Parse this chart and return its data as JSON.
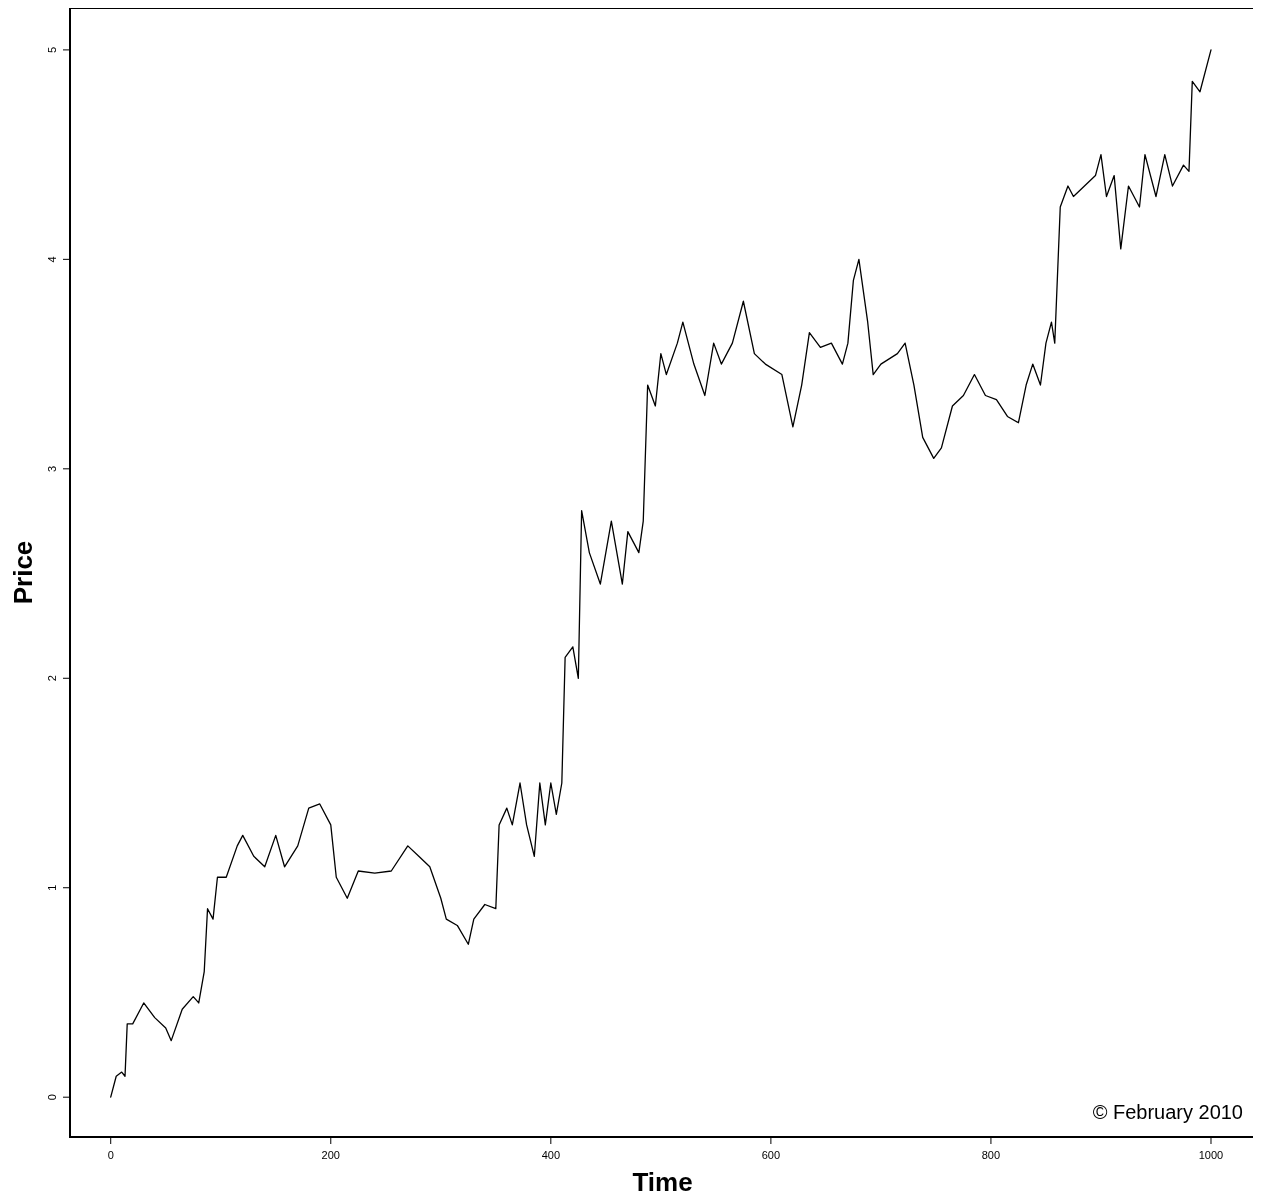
{
  "chart_data": {
    "type": "line",
    "xlabel": "Time",
    "ylabel": "Price",
    "xlim": [
      -37,
      1040
    ],
    "ylim": [
      -0.19,
      5.2
    ],
    "xticks": [
      0,
      200,
      400,
      600,
      800,
      1000
    ],
    "yticks": [
      0,
      1,
      2,
      3,
      4,
      5
    ],
    "annotations": [
      "© February 2010"
    ],
    "series": [
      {
        "color": "#000000",
        "x": [
          0,
          5,
          10,
          13,
          15,
          20,
          30,
          40,
          50,
          55,
          65,
          75,
          80,
          85,
          88,
          93,
          97,
          105,
          115,
          120,
          130,
          140,
          150,
          158,
          170,
          180,
          190,
          200,
          205,
          215,
          225,
          240,
          255,
          270,
          280,
          290,
          300,
          305,
          315,
          325,
          330,
          340,
          350,
          353,
          360,
          365,
          372,
          378,
          385,
          390,
          395,
          400,
          405,
          410,
          413,
          420,
          425,
          428,
          435,
          445,
          455,
          465,
          470,
          480,
          484,
          488,
          495,
          500,
          505,
          515,
          520,
          530,
          540,
          548,
          555,
          565,
          575,
          585,
          595,
          610,
          620,
          628,
          635,
          645,
          655,
          665,
          670,
          675,
          680,
          688,
          693,
          700,
          715,
          722,
          730,
          738,
          748,
          755,
          765,
          775,
          785,
          795,
          805,
          815,
          825,
          832,
          838,
          845,
          850,
          855,
          858,
          863,
          870,
          875,
          885,
          895,
          900,
          905,
          912,
          918,
          925,
          935,
          940,
          950,
          958,
          965,
          975,
          980,
          983,
          990,
          1000
        ],
        "values": [
          0,
          0.1,
          0.12,
          0.1,
          0.35,
          0.35,
          0.45,
          0.38,
          0.33,
          0.27,
          0.42,
          0.48,
          0.45,
          0.6,
          0.9,
          0.85,
          1.05,
          1.05,
          1.2,
          1.25,
          1.15,
          1.1,
          1.25,
          1.1,
          1.2,
          1.38,
          1.4,
          1.3,
          1.05,
          0.95,
          1.08,
          1.07,
          1.08,
          1.2,
          1.15,
          1.1,
          0.95,
          0.85,
          0.82,
          0.73,
          0.85,
          0.92,
          0.9,
          1.3,
          1.38,
          1.3,
          1.5,
          1.3,
          1.15,
          1.5,
          1.3,
          1.5,
          1.35,
          1.5,
          2.1,
          2.15,
          2.0,
          2.8,
          2.6,
          2.45,
          2.75,
          2.45,
          2.7,
          2.6,
          2.75,
          3.4,
          3.3,
          3.55,
          3.45,
          3.6,
          3.7,
          3.5,
          3.35,
          3.6,
          3.5,
          3.6,
          3.8,
          3.55,
          3.5,
          3.45,
          3.2,
          3.4,
          3.65,
          3.58,
          3.6,
          3.5,
          3.6,
          3.9,
          4.0,
          3.7,
          3.45,
          3.5,
          3.55,
          3.6,
          3.4,
          3.15,
          3.05,
          3.1,
          3.3,
          3.35,
          3.45,
          3.35,
          3.33,
          3.25,
          3.22,
          3.4,
          3.5,
          3.4,
          3.6,
          3.7,
          3.6,
          4.25,
          4.35,
          4.3,
          4.35,
          4.4,
          4.5,
          4.3,
          4.4,
          4.05,
          4.35,
          4.25,
          4.5,
          4.3,
          4.5,
          4.35,
          4.45,
          4.42,
          4.85,
          4.8,
          5.0
        ]
      }
    ]
  }
}
